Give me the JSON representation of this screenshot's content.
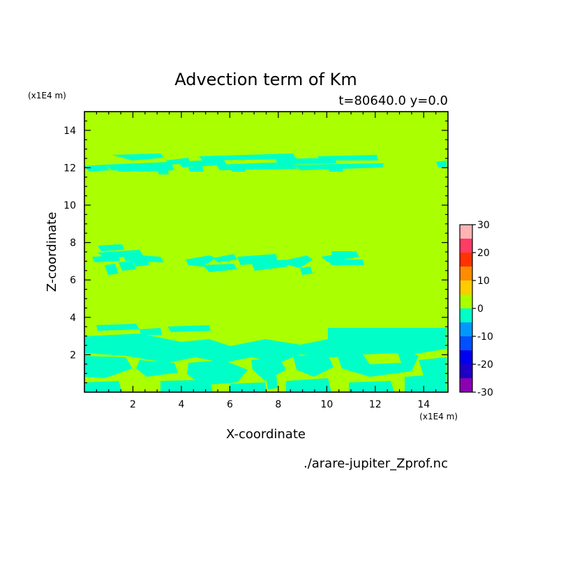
{
  "chart_data": {
    "type": "heatmap",
    "title": "Advection term of Km",
    "subtitle": "t=80640.0 y=0.0",
    "xlabel": "X-coordinate",
    "ylabel": "Z-coordinate",
    "x_unit": "(x1E4 m)",
    "y_unit": "(x1E4 m)",
    "footer": "./arare-jupiter_Zprof.nc",
    "xlim": [
      0,
      15
    ],
    "ylim": [
      0,
      15
    ],
    "x_ticks": [
      2,
      4,
      6,
      8,
      10,
      12,
      14
    ],
    "y_ticks": [
      2,
      4,
      6,
      8,
      10,
      12,
      14
    ],
    "colorbar": {
      "levels": [
        -30,
        -25,
        -20,
        -15,
        -10,
        -5,
        0,
        5,
        10,
        15,
        20,
        25,
        30
      ],
      "labels": [
        -30,
        -20,
        -10,
        0,
        10,
        20,
        30
      ],
      "colors": [
        "#8b00b0",
        "#1e00c8",
        "#0000f0",
        "#0050ff",
        "#0098ff",
        "#00ffc8",
        "#aaff00",
        "#ffcc00",
        "#ff8c00",
        "#ff3200",
        "#ff3c64",
        "#ffb4b4"
      ]
    },
    "background_value_range": [
      0,
      5
    ],
    "negative_regions": [
      {
        "band": "z 11.7-12.6",
        "value_range": [
          -5,
          0
        ],
        "x_range": [
          0,
          11.8
        ]
      },
      {
        "band": "z 6.0-7.8",
        "value_range": [
          -5,
          0
        ],
        "x_range": [
          0.2,
          11.5
        ]
      },
      {
        "band": "z 0-3.7",
        "value_range": [
          -5,
          0
        ],
        "x_range": [
          0,
          15
        ]
      }
    ]
  }
}
